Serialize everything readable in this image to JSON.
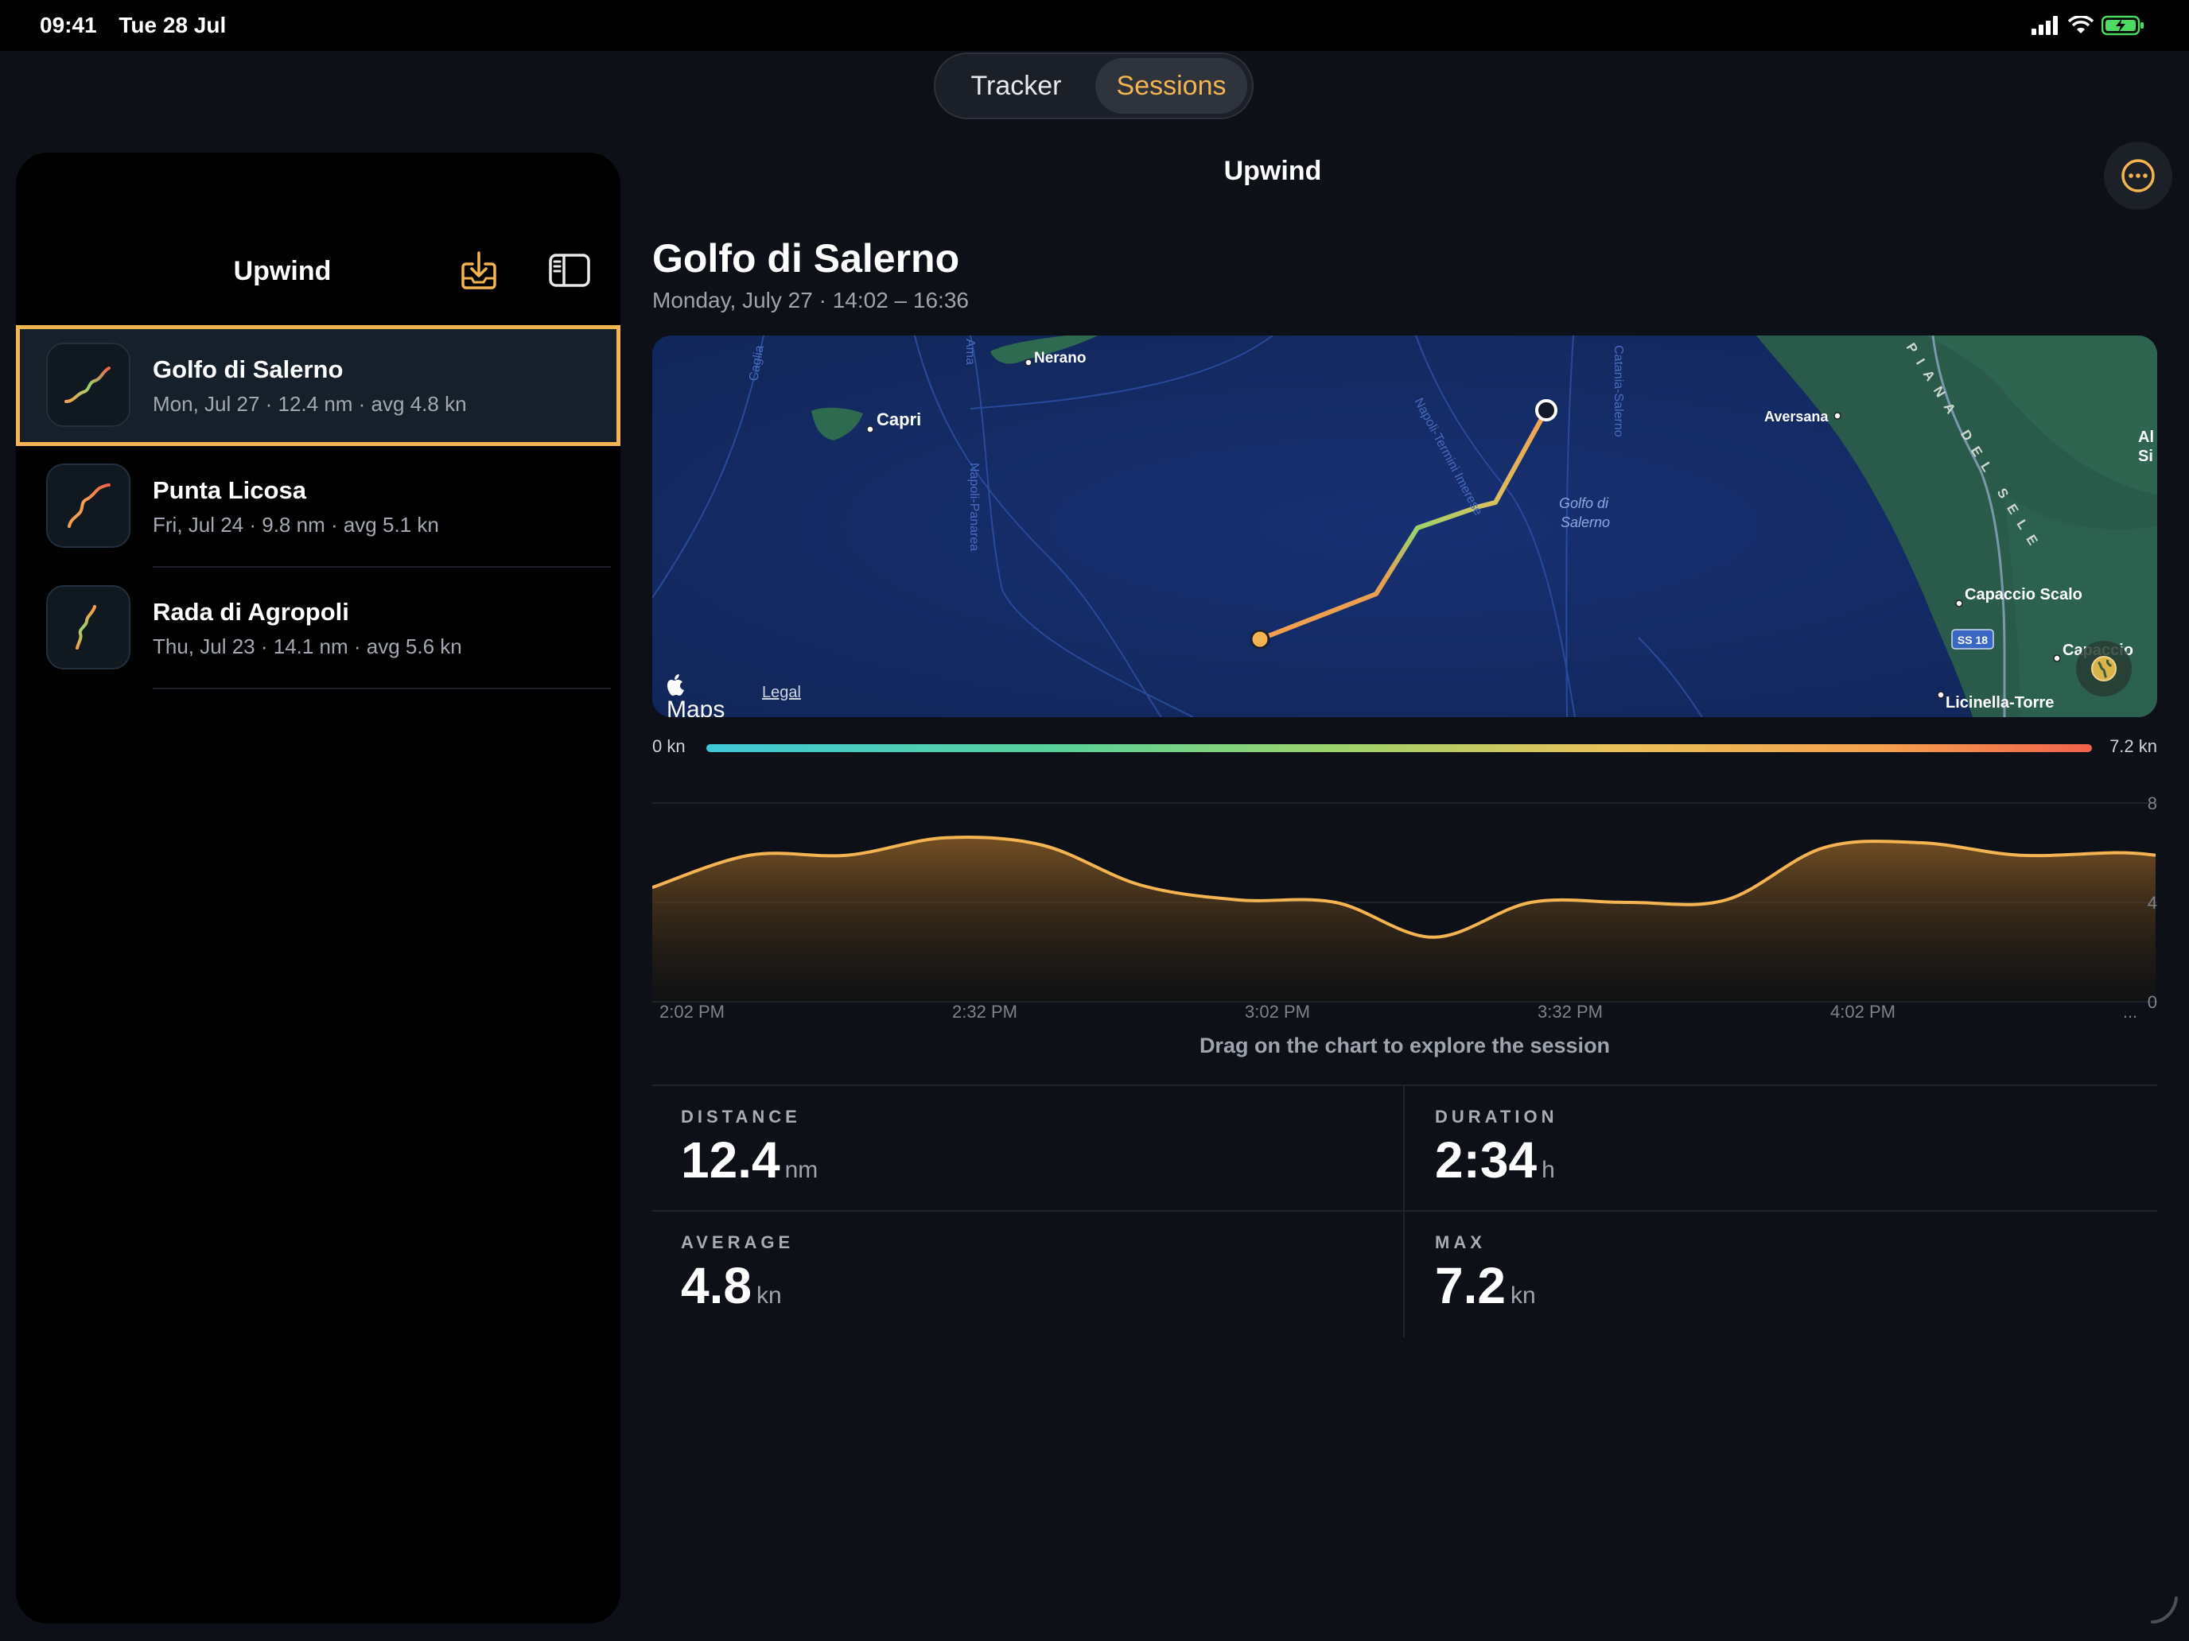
{
  "status_bar": {
    "time": "09:41",
    "date": "Tue 28 Jul",
    "icons": [
      "cellular-signal-icon",
      "wifi-icon",
      "battery-charging-icon"
    ]
  },
  "segmented": {
    "tabs": [
      {
        "label": "Tracker",
        "active": false
      },
      {
        "label": "Sessions",
        "active": true
      }
    ]
  },
  "sidebar": {
    "title": "Upwind",
    "import_icon": "tray-download-icon",
    "toggle_icon": "sidebar-toggle-icon",
    "sessions": [
      {
        "name": "Golfo di Salerno",
        "subtitle": "Mon, Jul 27 · 12.4 nm · avg 4.8 kn",
        "selected": true
      },
      {
        "name": "Punta Licosa",
        "subtitle": "Fri, Jul 24 · 9.8 nm · avg 5.1 kn",
        "selected": false
      },
      {
        "name": "Rada di Agropoli",
        "subtitle": "Thu, Jul 23 · 14.1 nm · avg 5.6 kn",
        "selected": false
      }
    ]
  },
  "detail": {
    "nav_title": "Upwind",
    "more_icon": "ellipsis-circle-icon",
    "title": "Golfo di Salerno",
    "time_range": "Monday, July 27 · 14:02 – 16:36",
    "map": {
      "labels": {
        "capri": "Capri",
        "nerano": "Nerano",
        "aversana": "Aversana",
        "gulf_line1": "Golfo di",
        "gulf_line2": "Salerno",
        "capaccio_scalo": "Capaccio Scalo",
        "capaccio": "Capaccio",
        "licinella": "Licinella-Torre",
        "ss18": "SS 18",
        "route_napoli_panarea": "Napoli-Panarea",
        "route_napoli_termini": "Napoli-Termini Imerese",
        "route_catania": "Catania-Salerno",
        "route_cagliari": "Caglia",
        "route_ama": "Ama",
        "piana": "PIANA DEL SELE",
        "edge_al": "Al",
        "edge_si": "Si"
      },
      "maps_brand": "Maps",
      "legal": "Legal",
      "globe_icon": "globe-icon"
    },
    "speed_scale": {
      "min": "0 kn",
      "max": "7.2 kn"
    },
    "chart_hint": "Drag on the chart to explore the session",
    "stats": {
      "distance": {
        "label": "DISTANCE",
        "value": "12.4",
        "unit": "nm"
      },
      "duration": {
        "label": "DURATION",
        "value": "2:34",
        "unit": "h"
      },
      "average": {
        "label": "AVERAGE",
        "value": "4.8",
        "unit": "kn"
      },
      "max": {
        "label": "MAX",
        "value": "7.2",
        "unit": "kn"
      }
    }
  },
  "chart_data": {
    "type": "area",
    "x_tick_labels": [
      "2:02 PM",
      "2:32 PM",
      "3:02 PM",
      "3:32 PM",
      "4:02 PM",
      "..."
    ],
    "y_tick_labels": [
      "8",
      "4",
      "0"
    ],
    "ylim": [
      0,
      8
    ],
    "x_minutes": [
      0,
      10,
      20,
      30,
      40,
      50,
      60,
      70,
      80,
      90,
      100,
      110,
      120,
      130,
      140,
      150,
      154
    ],
    "values": [
      4.6,
      5.9,
      5.9,
      6.6,
      6.3,
      4.7,
      4.1,
      4.0,
      2.6,
      4.0,
      4.0,
      4.1,
      6.2,
      6.4,
      5.9,
      6.0,
      5.9
    ],
    "line_color": "#f5b452"
  }
}
